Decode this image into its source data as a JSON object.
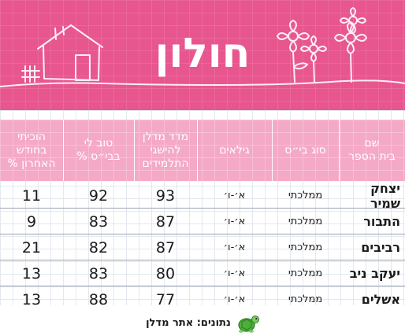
{
  "title": "חולון",
  "headers": {
    "name": "שם\nבית הספר",
    "type": "סוג בי״ס",
    "grades": "גילאים",
    "meitzav": "מדד מדלן\nלהישגי\nהתלמידים",
    "feel_good": "טוב לי\nבבי״ס %",
    "bullied": "הוכיתי\nבחודש\nהאחרון %"
  },
  "rows": [
    {
      "name": "יצחק שמיר",
      "type": "ממלכתי",
      "grades": "א׳-ו׳",
      "meitzav": "93",
      "feel_good": "92",
      "bullied": "11"
    },
    {
      "name": "התבור",
      "type": "ממלכתי",
      "grades": "א׳-ו׳",
      "meitzav": "87",
      "feel_good": "83",
      "bullied": "9"
    },
    {
      "name": "רביבים",
      "type": "ממלכתי",
      "grades": "א׳-ו׳",
      "meitzav": "87",
      "feel_good": "82",
      "bullied": "21"
    },
    {
      "name": "יעקב ניב",
      "type": "ממלכתי",
      "grades": "א׳-ו׳",
      "meitzav": "80",
      "feel_good": "83",
      "bullied": "13"
    },
    {
      "name": "אשלים",
      "type": "ממלכתי",
      "grades": "א׳-ו׳",
      "meitzav": "77",
      "feel_good": "88",
      "bullied": "13"
    }
  ],
  "source": "נתונים: אתר מדלן",
  "icons": {
    "mascot": "turtle-icon"
  },
  "colors": {
    "banner": "#e8568f",
    "header": "#f4a9c6",
    "mascot_shell": "#4caf3a"
  }
}
